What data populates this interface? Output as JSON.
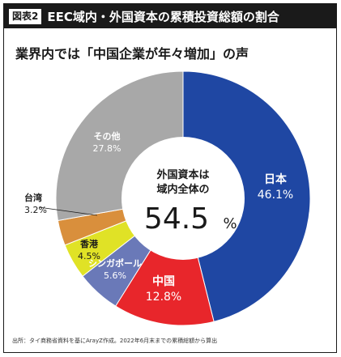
{
  "header": {
    "badge": "図表2",
    "title": "EEC域内・外国資本の累積投資総額の割合"
  },
  "subtitle": "業界内では「中国企業が年々増加」の声",
  "center": {
    "line1": "外国資本は",
    "line2": "域内全体の",
    "value_number": "54.5",
    "value_unit": "%"
  },
  "chart_data": {
    "type": "pie",
    "title": "EEC域内・外国資本の累積投資総額の割合",
    "categories": [
      "日本",
      "中国",
      "シンガポール",
      "香港",
      "台湾",
      "その他"
    ],
    "values": [
      46.1,
      12.8,
      5.6,
      4.5,
      3.2,
      27.8
    ],
    "value_labels": [
      "46.1%",
      "12.8%",
      "5.6%",
      "4.5%",
      "3.2%",
      "27.8%"
    ],
    "colors": [
      "#1f47a3",
      "#e8262b",
      "#6a79b8",
      "#e0e226",
      "#d98f3c",
      "#a8a8a8"
    ],
    "donut": true
  },
  "footer": "出所：タイ商務省資料を基にArayZ作成。2022年6月末までの累積総額から算出"
}
